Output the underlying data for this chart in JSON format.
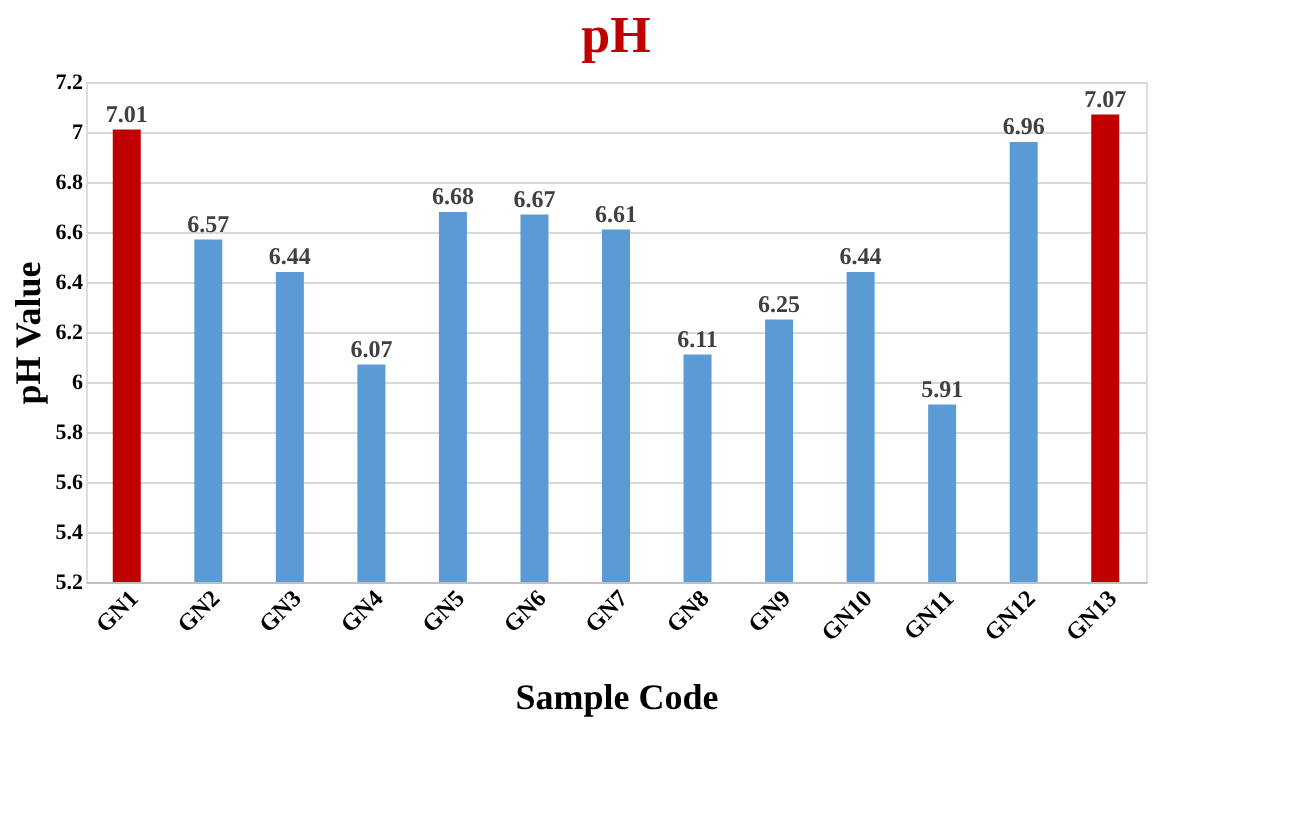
{
  "chart_data": {
    "type": "bar",
    "title": "pH",
    "xlabel": "Sample Code",
    "ylabel": "pH Value",
    "categories": [
      "GN1",
      "GN2",
      "GN3",
      "GN4",
      "GN5",
      "GN6",
      "GN7",
      "GN8",
      "GN9",
      "GN10",
      "GN11",
      "GN12",
      "GN13"
    ],
    "values": [
      7.01,
      6.57,
      6.44,
      6.07,
      6.68,
      6.67,
      6.61,
      6.11,
      6.25,
      6.44,
      5.91,
      6.96,
      7.07
    ],
    "colors": [
      "#c00000",
      "#5b9bd5",
      "#5b9bd5",
      "#5b9bd5",
      "#5b9bd5",
      "#5b9bd5",
      "#5b9bd5",
      "#5b9bd5",
      "#5b9bd5",
      "#5b9bd5",
      "#5b9bd5",
      "#5b9bd5",
      "#c00000"
    ],
    "ylim": [
      5.2,
      7.2
    ],
    "yticks": [
      5.2,
      5.4,
      5.6,
      5.8,
      6,
      6.2,
      6.4,
      6.6,
      6.8,
      7,
      7.2
    ],
    "grid": "y",
    "data_labels": true
  }
}
